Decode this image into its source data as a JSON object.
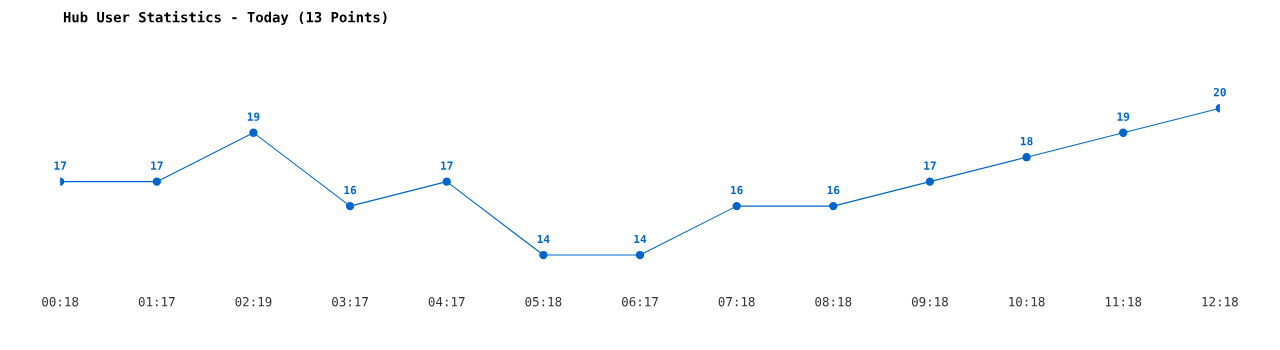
{
  "chart_data": {
    "type": "line",
    "title": "Hub User Statistics - Today (13 Points)",
    "categories": [
      "00:18",
      "01:17",
      "02:19",
      "03:17",
      "04:17",
      "05:18",
      "06:17",
      "07:18",
      "08:18",
      "09:18",
      "10:18",
      "11:18",
      "12:18"
    ],
    "values": [
      17,
      17,
      19,
      16,
      17,
      14,
      14,
      16,
      16,
      17,
      18,
      19,
      20
    ],
    "color": "#0066cc",
    "marker": "circle",
    "data_labels": true,
    "grid": false
  }
}
